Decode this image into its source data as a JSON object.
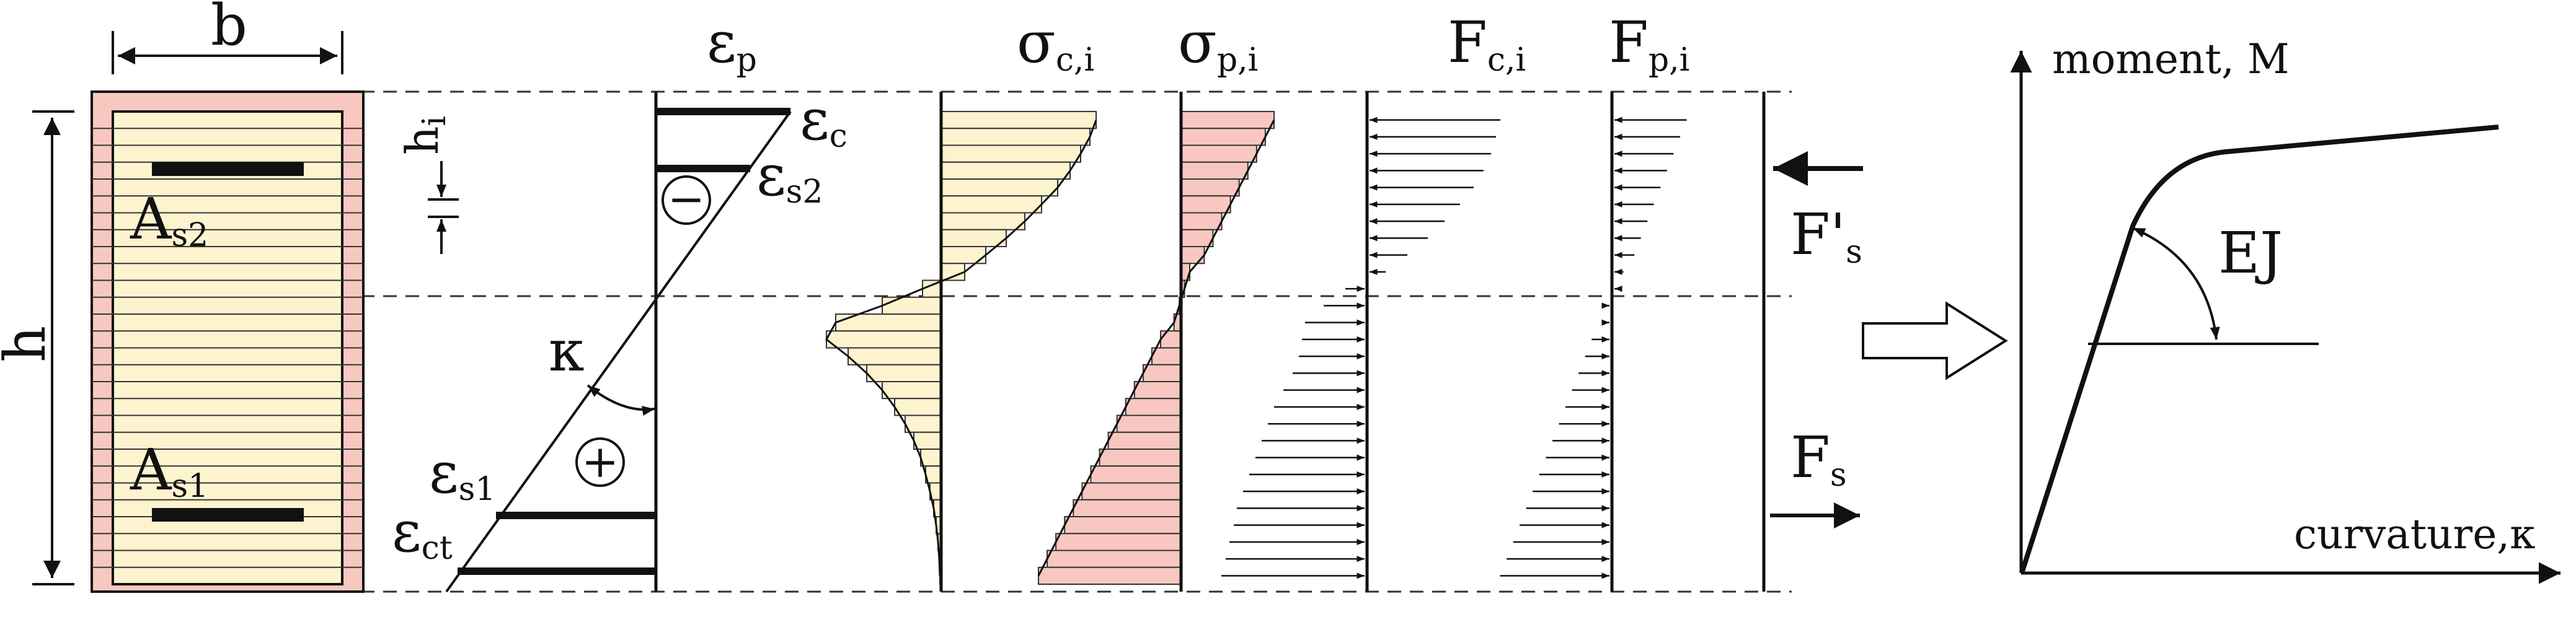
{
  "colors": {
    "concrete_fill": "#fdf3cf",
    "cover_fill": "#f8c8c0",
    "steel_fill": "#f8c8c0",
    "ink": "#111111"
  },
  "labels": {
    "width": "b",
    "height": "h",
    "layer": "h",
    "layer_sub": "i",
    "top_steel": "A",
    "top_steel_sub": "s2",
    "bottom_steel": "A",
    "bottom_steel_sub": "s1",
    "strain_profile": "ε",
    "strain_profile_sub": "p",
    "strain_top": "ε",
    "strain_top_sub": "c",
    "strain_s2": "ε",
    "strain_s2_sub": "s2",
    "strain_s1": "ε",
    "strain_s1_sub": "s1",
    "strain_bottom": "ε",
    "strain_bottom_sub": "ct",
    "curvature_symbol": "κ",
    "compression_sign": "−",
    "tension_sign": "+",
    "concrete_stress": "σ",
    "concrete_stress_sub": "c,i",
    "cover_stress": "σ",
    "cover_stress_sub": "p,i",
    "concrete_force": "F",
    "concrete_force_sub": "c,i",
    "cover_force": "F",
    "cover_force_sub": "p,i",
    "steel_force_top": "F'",
    "steel_force_top_sub": "s",
    "steel_force_bottom": "F",
    "steel_force_bottom_sub": "s",
    "stiffness": "EJ",
    "y_axis": "moment, M",
    "x_axis": "curvature,κ"
  },
  "section": {
    "layer_count": 28
  }
}
